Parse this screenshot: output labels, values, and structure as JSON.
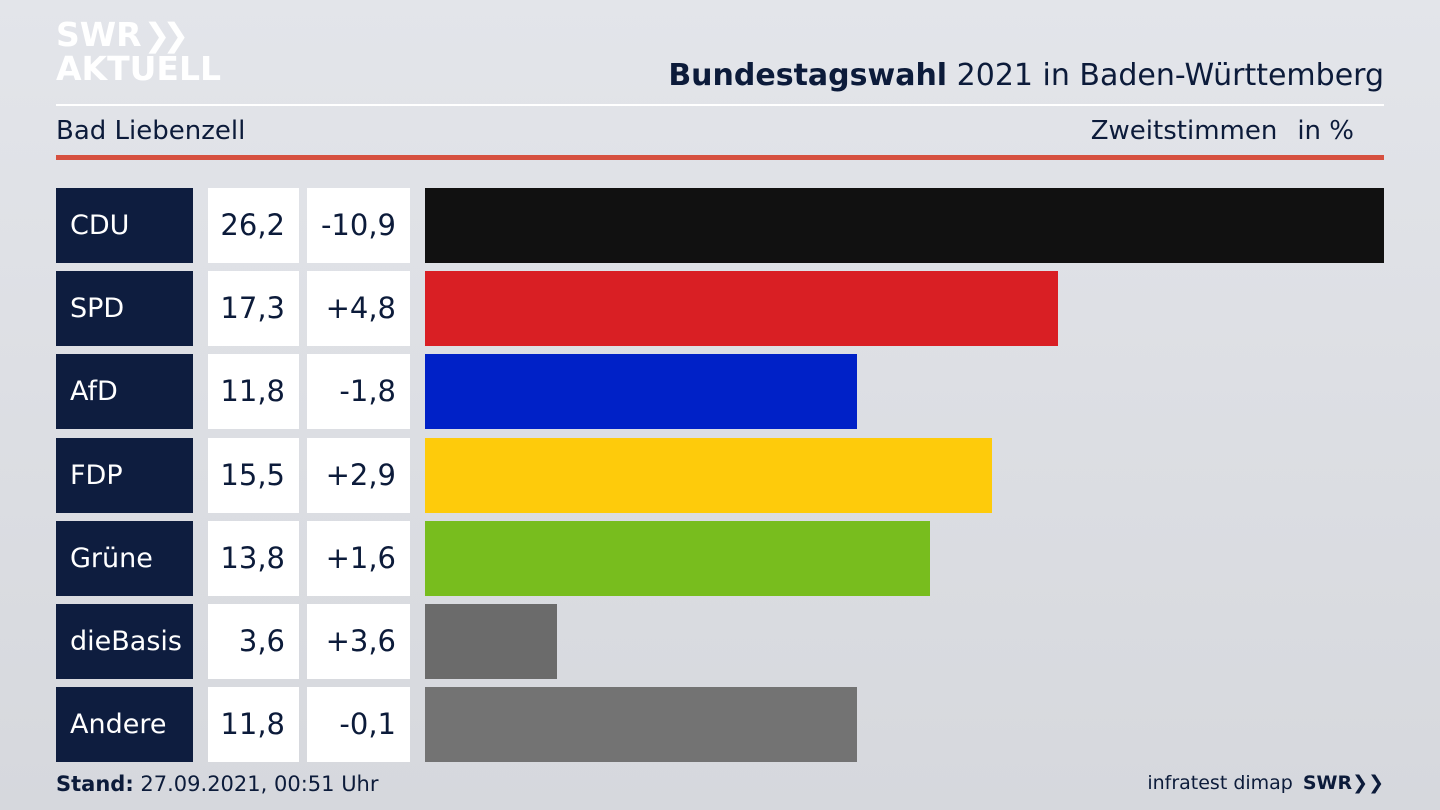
{
  "logo": {
    "line1": "SWR",
    "line2": "AKTUELL",
    "icon": "double-chevron-icon"
  },
  "header": {
    "title_bold": "Bundestagswahl",
    "title_rest": "2021 in Baden-Württemberg",
    "location": "Bad Liebenzell",
    "metric": "Zweitstimmen",
    "unit": "in %"
  },
  "colors": {
    "accent_rule": "#d65040",
    "party_box": "#0e1d3f"
  },
  "chart_data": {
    "type": "bar",
    "orientation": "horizontal",
    "categories": [
      "CDU",
      "SPD",
      "AfD",
      "FDP",
      "Grüne",
      "dieBasis",
      "Andere"
    ],
    "values": [
      26.2,
      17.3,
      11.8,
      15.5,
      13.8,
      3.6,
      11.8
    ],
    "value_labels": [
      "26,2",
      "17,3",
      "11,8",
      "15,5",
      "13,8",
      "3,6",
      "11,8"
    ],
    "changes": [
      -10.9,
      4.8,
      -1.8,
      2.9,
      1.6,
      3.6,
      -0.1
    ],
    "change_labels": [
      "-10,9",
      "+4,8",
      "-1,8",
      "+2,9",
      "+1,6",
      "+3,6",
      "-0,1"
    ],
    "colors": [
      "#111111",
      "#d91f24",
      "#0021c7",
      "#fecb0b",
      "#78bd1e",
      "#6b6b6b",
      "#737373"
    ],
    "xlim": [
      0,
      26.2
    ]
  },
  "footer": {
    "stand_label": "Stand:",
    "stand_value": "27.09.2021, 00:51 Uhr",
    "source": "infratest dimap",
    "brand": "SWR"
  }
}
